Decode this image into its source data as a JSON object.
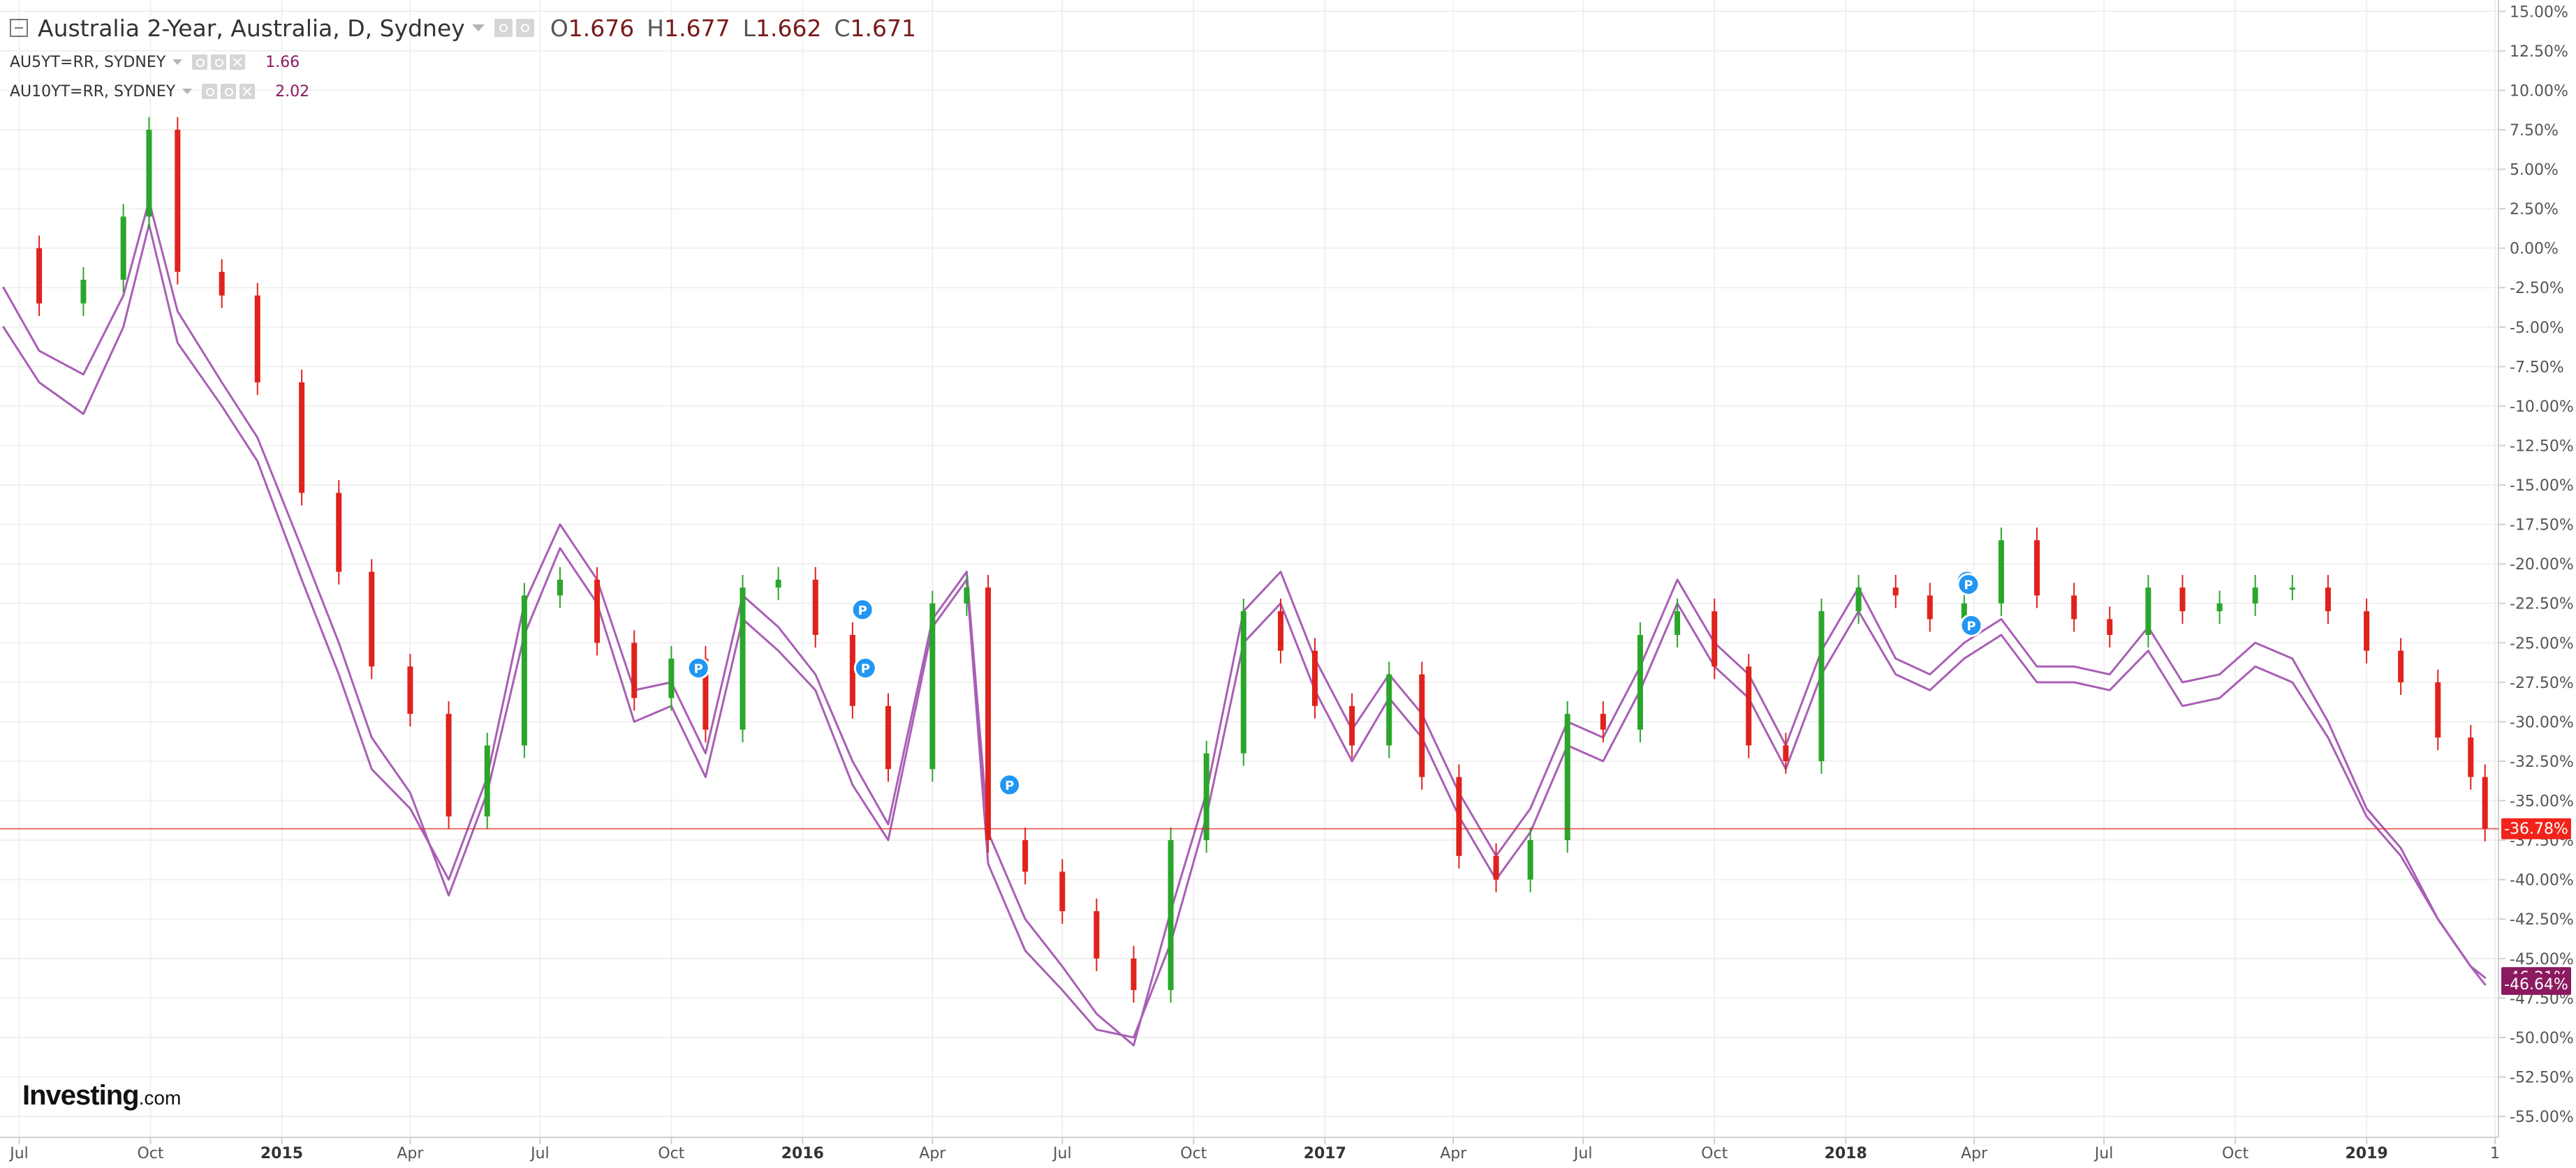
{
  "header": {
    "title": "Australia 2-Year, Australia, D, Sydney",
    "ohlc": {
      "o_label": "O",
      "o_value": "1.676",
      "h_label": "H",
      "h_value": "1.677",
      "l_label": "L",
      "l_value": "1.662",
      "c_label": "C",
      "c_value": "1.671"
    },
    "studies": [
      {
        "name": "AU5YT=RR, SYDNEY",
        "value": "1.66"
      },
      {
        "name": "AU10YT=RR, SYDNEY",
        "value": "2.02"
      }
    ]
  },
  "brand": {
    "main": "Investing",
    "suffix": ".com"
  },
  "chart_data": {
    "type": "line",
    "xaxis": {
      "labels": [
        {
          "text": "Jul",
          "x": "2014-07-01",
          "bold": false
        },
        {
          "text": "Oct",
          "x": "2014-10-01",
          "bold": false
        },
        {
          "text": "2015",
          "x": "2015-01-01",
          "bold": true
        },
        {
          "text": "Apr",
          "x": "2015-04-01",
          "bold": false
        },
        {
          "text": "Jul",
          "x": "2015-07-01",
          "bold": false
        },
        {
          "text": "Oct",
          "x": "2015-10-01",
          "bold": false
        },
        {
          "text": "2016",
          "x": "2016-01-01",
          "bold": true
        },
        {
          "text": "Apr",
          "x": "2016-04-01",
          "bold": false
        },
        {
          "text": "Jul",
          "x": "2016-07-01",
          "bold": false
        },
        {
          "text": "Oct",
          "x": "2016-10-01",
          "bold": false
        },
        {
          "text": "2017",
          "x": "2017-01-01",
          "bold": true
        },
        {
          "text": "Apr",
          "x": "2017-04-01",
          "bold": false
        },
        {
          "text": "Jul",
          "x": "2017-07-01",
          "bold": false
        },
        {
          "text": "Oct",
          "x": "2017-10-01",
          "bold": false
        },
        {
          "text": "2018",
          "x": "2018-01-01",
          "bold": true
        },
        {
          "text": "Apr",
          "x": "2018-04-01",
          "bold": false
        },
        {
          "text": "Jul",
          "x": "2018-07-01",
          "bold": false
        },
        {
          "text": "Oct",
          "x": "2018-10-01",
          "bold": false
        },
        {
          "text": "2019",
          "x": "2019-01-01",
          "bold": true
        },
        {
          "text": "1",
          "x": "2019-04-01",
          "bold": false
        }
      ]
    },
    "yaxis": {
      "ylim": [
        -55.75,
        15.5
      ],
      "ticks": [
        {
          "value": 15,
          "label": "15.00%"
        },
        {
          "value": 12.5,
          "label": "12.50%"
        },
        {
          "value": 10,
          "label": "10.00%"
        },
        {
          "value": 7.5,
          "label": "7.50%"
        },
        {
          "value": 5,
          "label": "5.00%"
        },
        {
          "value": 2.5,
          "label": "2.50%"
        },
        {
          "value": 0,
          "label": "0.00%"
        },
        {
          "value": -2.5,
          "label": "-2.50%"
        },
        {
          "value": -5,
          "label": "-5.00%"
        },
        {
          "value": -7.5,
          "label": "-7.50%"
        },
        {
          "value": -10,
          "label": "-10.00%"
        },
        {
          "value": -12.5,
          "label": "-12.50%"
        },
        {
          "value": -15,
          "label": "-15.00%"
        },
        {
          "value": -17.5,
          "label": "-17.50%"
        },
        {
          "value": -20,
          "label": "-20.00%"
        },
        {
          "value": -22.5,
          "label": "-22.50%"
        },
        {
          "value": -25,
          "label": "-25.00%"
        },
        {
          "value": -27.5,
          "label": "-27.50%"
        },
        {
          "value": -30,
          "label": "-30.00%"
        },
        {
          "value": -32.5,
          "label": "-32.50%"
        },
        {
          "value": -35,
          "label": "-35.00%"
        },
        {
          "value": -37.5,
          "label": "-37.50%"
        },
        {
          "value": -40,
          "label": "-40.00%"
        },
        {
          "value": -42.5,
          "label": "-42.50%"
        },
        {
          "value": -45,
          "label": "-45.00%"
        },
        {
          "value": -47.5,
          "label": "-47.50%"
        },
        {
          "value": -50,
          "label": "-50.00%"
        },
        {
          "value": -52.5,
          "label": "-52.50%"
        },
        {
          "value": -55,
          "label": "-55.00%"
        }
      ]
    },
    "grid": true,
    "legend": "top-left",
    "colors": {
      "up_candle": "#2aa62a",
      "down_candle": "#e0221c",
      "study_line": "#a95fb5",
      "grid": "#f0f0f0",
      "axis_border": "#cfcfcf",
      "marker": "#2196f3",
      "current_line": "#e0221c",
      "current_label_main": "#f2231a",
      "current_label_study": "#8b1a5f",
      "tick_text": "#555555"
    },
    "series": [
      {
        "style": "candlestick",
        "dates": [
          "2014-06-20",
          "2014-07-15",
          "2014-08-15",
          "2014-09-12",
          "2014-09-30",
          "2014-10-20",
          "2014-11-20",
          "2014-12-15",
          "2015-01-15",
          "2015-02-10",
          "2015-03-05",
          "2015-04-01",
          "2015-04-28",
          "2015-05-25",
          "2015-06-20",
          "2015-07-15",
          "2015-08-10",
          "2015-09-05",
          "2015-10-01",
          "2015-10-25",
          "2015-11-20",
          "2015-12-15",
          "2016-01-10",
          "2016-02-05",
          "2016-03-01",
          "2016-04-01",
          "2016-04-25",
          "2016-05-10",
          "2016-06-05",
          "2016-07-01",
          "2016-07-25",
          "2016-08-20",
          "2016-09-15",
          "2016-10-10",
          "2016-11-05",
          "2016-12-01",
          "2016-12-25",
          "2017-01-20",
          "2017-02-15",
          "2017-03-10",
          "2017-04-05",
          "2017-05-01",
          "2017-05-25",
          "2017-06-20",
          "2017-07-15",
          "2017-08-10",
          "2017-09-05",
          "2017-10-01",
          "2017-10-25",
          "2017-11-20",
          "2017-12-15",
          "2018-01-10",
          "2018-02-05",
          "2018-03-01",
          "2018-03-25",
          "2018-04-20",
          "2018-05-15",
          "2018-06-10",
          "2018-07-05",
          "2018-08-01",
          "2018-08-25",
          "2018-09-20",
          "2018-10-15",
          "2018-11-10",
          "2018-12-05",
          "2019-01-01",
          "2019-01-25",
          "2019-02-20",
          "2019-03-15",
          "2019-03-25"
        ],
        "values": [
          0.0,
          -3.5,
          -2.0,
          2.0,
          7.5,
          -1.5,
          -3.0,
          -8.5,
          -15.5,
          -20.5,
          -26.5,
          -29.5,
          -36.0,
          -31.5,
          -22.0,
          -21.0,
          -25.0,
          -28.5,
          -26.0,
          -30.5,
          -21.5,
          -21.0,
          -24.5,
          -29.0,
          -33.0,
          -22.5,
          -21.5,
          -37.5,
          -39.5,
          -42.0,
          -45.0,
          -47.0,
          -37.5,
          -32.0,
          -23.0,
          -25.5,
          -29.0,
          -31.5,
          -27.0,
          -33.5,
          -38.5,
          -40.0,
          -37.5,
          -29.5,
          -30.5,
          -24.5,
          -23.0,
          -26.5,
          -31.5,
          -32.5,
          -23.0,
          -21.5,
          -22.0,
          -23.5,
          -22.5,
          -18.5,
          -22.0,
          -23.5,
          -24.5,
          -21.5,
          -23.0,
          -22.5,
          -21.5,
          -21.5,
          -23.0,
          -25.5,
          -27.5,
          -31.0,
          -33.5,
          -36.78
        ]
      },
      {
        "style": "line",
        "dates": [
          "2014-06-20",
          "2014-07-15",
          "2014-08-15",
          "2014-09-12",
          "2014-09-30",
          "2014-10-20",
          "2014-11-20",
          "2014-12-15",
          "2015-01-15",
          "2015-02-10",
          "2015-03-05",
          "2015-04-01",
          "2015-04-28",
          "2015-05-25",
          "2015-06-20",
          "2015-07-15",
          "2015-08-10",
          "2015-09-05",
          "2015-10-01",
          "2015-10-25",
          "2015-11-20",
          "2015-12-15",
          "2016-01-10",
          "2016-02-05",
          "2016-03-01",
          "2016-04-01",
          "2016-04-25",
          "2016-05-10",
          "2016-06-05",
          "2016-07-01",
          "2016-07-25",
          "2016-08-20",
          "2016-09-15",
          "2016-10-10",
          "2016-11-05",
          "2016-12-01",
          "2016-12-25",
          "2017-01-20",
          "2017-02-15",
          "2017-03-10",
          "2017-04-05",
          "2017-05-01",
          "2017-05-25",
          "2017-06-20",
          "2017-07-15",
          "2017-08-10",
          "2017-09-05",
          "2017-10-01",
          "2017-10-25",
          "2017-11-20",
          "2017-12-15",
          "2018-01-10",
          "2018-02-05",
          "2018-03-01",
          "2018-03-25",
          "2018-04-20",
          "2018-05-15",
          "2018-06-10",
          "2018-07-05",
          "2018-08-01",
          "2018-08-25",
          "2018-09-20",
          "2018-10-15",
          "2018-11-10",
          "2018-12-05",
          "2019-01-01",
          "2019-01-25",
          "2019-02-20",
          "2019-03-15",
          "2019-03-25"
        ],
        "values": [
          -2.5,
          -6.5,
          -8.0,
          -3.0,
          3.0,
          -4.0,
          -8.5,
          -12.0,
          -19.0,
          -25.0,
          -31.0,
          -34.5,
          -41.0,
          -34.5,
          -24.5,
          -19.0,
          -22.5,
          -30.0,
          -29.0,
          -33.5,
          -23.5,
          -25.5,
          -28.0,
          -34.0,
          -37.5,
          -24.0,
          -21.0,
          -39.0,
          -44.5,
          -47.0,
          -49.5,
          -50.0,
          -44.0,
          -36.0,
          -25.0,
          -22.5,
          -28.0,
          -32.5,
          -28.5,
          -31.0,
          -36.0,
          -40.0,
          -37.0,
          -31.5,
          -32.5,
          -28.0,
          -22.5,
          -26.5,
          -28.5,
          -33.0,
          -27.0,
          -23.0,
          -27.0,
          -28.0,
          -26.0,
          -24.5,
          -27.5,
          -27.5,
          -28.0,
          -25.5,
          -29.0,
          -28.5,
          -26.5,
          -27.5,
          -31.0,
          -36.0,
          -38.5,
          -42.5,
          -45.5,
          -46.21
        ]
      },
      {
        "style": "line",
        "dates": [
          "2014-06-20",
          "2014-07-15",
          "2014-08-15",
          "2014-09-12",
          "2014-09-30",
          "2014-10-20",
          "2014-11-20",
          "2014-12-15",
          "2015-01-15",
          "2015-02-10",
          "2015-03-05",
          "2015-04-01",
          "2015-04-28",
          "2015-05-25",
          "2015-06-20",
          "2015-07-15",
          "2015-08-10",
          "2015-09-05",
          "2015-10-01",
          "2015-10-25",
          "2015-11-20",
          "2015-12-15",
          "2016-01-10",
          "2016-02-05",
          "2016-03-01",
          "2016-04-01",
          "2016-04-25",
          "2016-05-10",
          "2016-06-05",
          "2016-07-01",
          "2016-07-25",
          "2016-08-20",
          "2016-09-15",
          "2016-10-10",
          "2016-11-05",
          "2016-12-01",
          "2016-12-25",
          "2017-01-20",
          "2017-02-15",
          "2017-03-10",
          "2017-04-05",
          "2017-05-01",
          "2017-05-25",
          "2017-06-20",
          "2017-07-15",
          "2017-08-10",
          "2017-09-05",
          "2017-10-01",
          "2017-10-25",
          "2017-11-20",
          "2017-12-15",
          "2018-01-10",
          "2018-02-05",
          "2018-03-01",
          "2018-03-25",
          "2018-04-20",
          "2018-05-15",
          "2018-06-10",
          "2018-07-05",
          "2018-08-01",
          "2018-08-25",
          "2018-09-20",
          "2018-10-15",
          "2018-11-10",
          "2018-12-05",
          "2019-01-01",
          "2019-01-25",
          "2019-02-20",
          "2019-03-15",
          "2019-03-25"
        ],
        "values": [
          -5.0,
          -8.5,
          -10.5,
          -5.0,
          1.5,
          -6.0,
          -10.0,
          -13.5,
          -21.0,
          -27.0,
          -33.0,
          -35.5,
          -40.0,
          -33.5,
          -22.5,
          -17.5,
          -21.0,
          -28.0,
          -27.5,
          -32.0,
          -22.0,
          -24.0,
          -27.0,
          -32.5,
          -36.5,
          -23.5,
          -20.5,
          -37.0,
          -42.5,
          -45.5,
          -48.5,
          -50.5,
          -42.0,
          -34.5,
          -23.0,
          -20.5,
          -26.0,
          -30.5,
          -27.0,
          -29.5,
          -34.5,
          -38.5,
          -35.5,
          -30.0,
          -31.0,
          -26.5,
          -21.0,
          -25.0,
          -27.0,
          -31.5,
          -25.5,
          -21.5,
          -26.0,
          -27.0,
          -25.0,
          -23.5,
          -26.5,
          -26.5,
          -27.0,
          -24.0,
          -27.5,
          -27.0,
          -25.0,
          -26.0,
          -30.0,
          -35.5,
          -38.0,
          -42.5,
          -45.5,
          -46.64
        ]
      }
    ],
    "markers": [
      {
        "text": "P",
        "x": "2015-10-20",
        "y": -26.6
      },
      {
        "text": "P",
        "x": "2016-02-12",
        "y": -22.9
      },
      {
        "text": "P",
        "x": "2016-02-14",
        "y": -26.6
      },
      {
        "text": "P",
        "x": "2016-05-25",
        "y": -34.0
      },
      {
        "text": "P",
        "x": "2018-03-27",
        "y": -21.1
      },
      {
        "text": "P",
        "x": "2018-03-28",
        "y": -21.3
      },
      {
        "text": "P",
        "x": "2018-03-30",
        "y": -23.9
      }
    ],
    "value_labels": [
      {
        "text": "-36.78%",
        "value": -36.78,
        "series": "main"
      },
      {
        "text": "-46.21%",
        "value": -46.21,
        "series": "study"
      },
      {
        "text": "-46.64%",
        "value": -46.64,
        "series": "study"
      }
    ]
  }
}
